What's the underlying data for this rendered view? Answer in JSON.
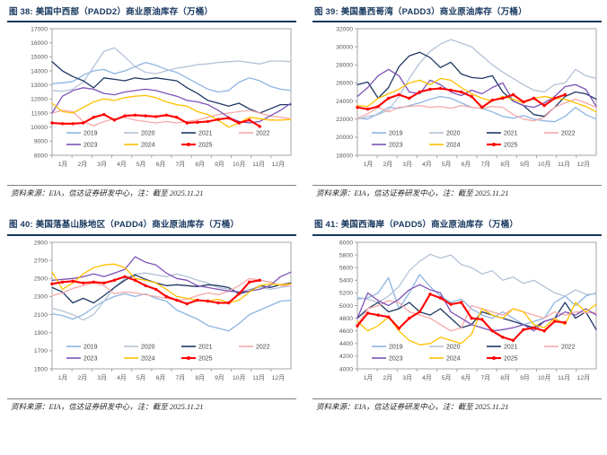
{
  "page_bg": "#ffffff",
  "figures": [
    {
      "title": "图 38:  美国中西部（PADD2）商业原油库存（万桶）",
      "source": "资料来源：EIA，信达证券研发中心，注：截至 2025.11.21"
    },
    {
      "title": "图 39:  美国墨西哥湾（PADD3）商业原油库存（万桶）",
      "source": "资料来源：EIA，信达证券研发中心，注：截至 2025.11.21"
    },
    {
      "title": "图 40:  美国落基山脉地区（PADD4）商业原油库存（万桶）",
      "source": "资料来源：EIA，信达证券研发中心，注：截至 2025.11.21"
    },
    {
      "title": "图 41:  美国西海岸（PADD5）商业原油库存（万桶）",
      "source": "资料来源：EIA，信达证券研发中心，注：截至 2025.11.21"
    }
  ],
  "style": {
    "title_color": "#17375E",
    "plot_border_color": "#a6a6a6",
    "tick_text_color": "#595959",
    "source_rule_color": "#7f7f7f"
  },
  "chart_data": [
    {
      "type": "line",
      "title": "美国中西部（PADD2）商业原油库存（万桶）",
      "xlabel": "",
      "ylabel": "",
      "ylim": [
        8000,
        17000
      ],
      "ytick": 1000,
      "grid": false,
      "legend_position": "inside-bottom",
      "x_labels": [
        "1月",
        "2月",
        "3月",
        "4月",
        "5月",
        "6月",
        "7月",
        "8月",
        "9月",
        "10月",
        "11月",
        "12月"
      ],
      "series": [
        {
          "name": "2019",
          "color": "#8EB4E3",
          "marker": false,
          "values": [
            13100,
            13150,
            13250,
            13700,
            14000,
            14100,
            13800,
            14000,
            14300,
            14600,
            14400,
            14100,
            13900,
            13500,
            13100,
            12700,
            12500,
            12600,
            13200,
            13500,
            13300,
            12900,
            12700,
            12600
          ]
        },
        {
          "name": "2020",
          "color": "#B3C2D6",
          "marker": false,
          "values": [
            12600,
            12550,
            12700,
            13200,
            14300,
            15400,
            15650,
            15000,
            14300,
            13900,
            13800,
            14000,
            14200,
            14300,
            14450,
            14500,
            14600,
            14650,
            14700,
            14600,
            14500,
            14700,
            14700,
            14650
          ]
        },
        {
          "name": "2021",
          "color": "#1F3864",
          "marker": false,
          "values": [
            14650,
            14000,
            13600,
            13300,
            12800,
            13500,
            13400,
            13300,
            13500,
            13400,
            13500,
            13400,
            13300,
            12800,
            12400,
            11900,
            11700,
            11500,
            11700,
            11300,
            11000,
            11300,
            11600,
            11600
          ]
        },
        {
          "name": "2022",
          "color": "#F5A9A9",
          "marker": false,
          "values": [
            11000,
            11200,
            11100,
            10400,
            10100,
            10400,
            10600,
            10700,
            10500,
            10400,
            10300,
            10400,
            10300,
            10400,
            10500,
            10700,
            10900,
            11000,
            11100,
            11200,
            11000,
            10800,
            10700,
            10600
          ]
        },
        {
          "name": "2023",
          "color": "#7E52B8",
          "marker": false,
          "values": [
            11000,
            12200,
            12600,
            12800,
            12700,
            12400,
            12300,
            12500,
            12600,
            12700,
            12600,
            12400,
            12200,
            11900,
            11800,
            11600,
            11200,
            10700,
            10400,
            10300,
            10400,
            10800,
            11200,
            11700
          ]
        },
        {
          "name": "2024",
          "color": "#FFC000",
          "marker": false,
          "values": [
            11700,
            11100,
            11000,
            11400,
            11800,
            12000,
            11900,
            12100,
            12200,
            12250,
            12100,
            11800,
            11600,
            11500,
            11100,
            10900,
            10500,
            10000,
            10300,
            10700,
            10600,
            10500,
            10500,
            10550
          ]
        },
        {
          "name": "2025",
          "color": "#FF0000",
          "marker": true,
          "values": [
            10300,
            10250,
            10250,
            10300,
            10700,
            10900,
            10500,
            10800,
            10850,
            10800,
            10750,
            10850,
            10700,
            10300,
            10350,
            10400,
            10550,
            10650,
            10300,
            10500,
            10050
          ]
        }
      ]
    },
    {
      "type": "line",
      "title": "美国墨西哥湾（PADD3）商业原油库存（万桶）",
      "xlabel": "",
      "ylabel": "",
      "ylim": [
        18000,
        32000
      ],
      "ytick": 2000,
      "grid": false,
      "legend_position": "inside-bottom",
      "x_labels": [
        "1月",
        "2月",
        "3月",
        "4月",
        "5月",
        "6月",
        "7月",
        "8月",
        "9月",
        "10月",
        "11月",
        "12月"
      ],
      "series": [
        {
          "name": "2019",
          "color": "#8EB4E3",
          "marker": false,
          "values": [
            22100,
            22000,
            22600,
            23300,
            23200,
            23500,
            23800,
            24200,
            24500,
            24300,
            23800,
            23300,
            23200,
            22800,
            22300,
            22100,
            22400,
            22000,
            21800,
            21700,
            22300,
            23300,
            22500,
            22000
          ]
        },
        {
          "name": "2020",
          "color": "#B3C2D6",
          "marker": false,
          "values": [
            22000,
            22300,
            22500,
            23000,
            24500,
            26500,
            28200,
            29500,
            30300,
            30800,
            30400,
            30000,
            29000,
            28000,
            27200,
            26500,
            25800,
            25200,
            25000,
            25800,
            26000,
            27500,
            26800,
            26500
          ]
        },
        {
          "name": "2021",
          "color": "#1F3864",
          "marker": false,
          "values": [
            25800,
            26100,
            24300,
            25500,
            27800,
            29000,
            29400,
            28800,
            27700,
            28300,
            27000,
            26600,
            26500,
            26800,
            25000,
            24000,
            23500,
            22500,
            22300,
            23300,
            24500,
            25000,
            24800,
            24200
          ]
        },
        {
          "name": "2022",
          "color": "#F5A9A9",
          "marker": false,
          "values": [
            22100,
            22600,
            23300,
            22800,
            23300,
            23400,
            23500,
            23300,
            23400,
            23200,
            23500,
            23300,
            23200,
            23400,
            23300,
            22500,
            22000,
            21800,
            22200,
            23300,
            23800,
            24200,
            23800,
            23300
          ]
        },
        {
          "name": "2023",
          "color": "#7E52B8",
          "marker": false,
          "values": [
            24500,
            25500,
            26800,
            27500,
            26800,
            25000,
            24800,
            26300,
            25800,
            25000,
            24600,
            25200,
            24800,
            25500,
            26000,
            24000,
            23500,
            23300,
            23800,
            24500,
            25600,
            25800,
            25300,
            23400
          ]
        },
        {
          "name": "2024",
          "color": "#FFC000",
          "marker": false,
          "values": [
            23500,
            23400,
            24300,
            24800,
            25300,
            26000,
            26300,
            25800,
            26500,
            26300,
            25500,
            24800,
            24300,
            24000,
            24500,
            24200,
            23800,
            24300,
            24500,
            24300,
            24200,
            23800,
            23400,
            22800
          ]
        },
        {
          "name": "2025",
          "color": "#FF0000",
          "marker": true,
          "values": [
            23300,
            23100,
            23400,
            24300,
            24700,
            24300,
            25000,
            25300,
            25400,
            25200,
            25000,
            24500,
            23300,
            24100,
            24300,
            24700,
            23900,
            24300,
            23500,
            24300,
            24700
          ]
        }
      ]
    },
    {
      "type": "line",
      "title": "美国落基山脉地区（PADD4）商业原油库存（万桶）",
      "xlabel": "",
      "ylabel": "",
      "ylim": [
        1500,
        2900
      ],
      "ytick": 200,
      "grid": false,
      "legend_position": "inside-bottom",
      "x_labels": [
        "1月",
        "2月",
        "3月",
        "4月",
        "5月",
        "6月",
        "7月",
        "8月",
        "9月",
        "10月",
        "11月",
        "12月"
      ],
      "series": [
        {
          "name": "2019",
          "color": "#8EB4E3",
          "marker": false,
          "values": [
            2110,
            2090,
            2050,
            2100,
            2180,
            2250,
            2300,
            2330,
            2300,
            2330,
            2280,
            2250,
            2150,
            2100,
            2050,
            1980,
            1950,
            1920,
            2000,
            2100,
            2150,
            2200,
            2250,
            2260
          ]
        },
        {
          "name": "2020",
          "color": "#B3C2D6",
          "marker": false,
          "values": [
            2170,
            2140,
            2100,
            2040,
            2100,
            2250,
            2400,
            2500,
            2550,
            2560,
            2540,
            2520,
            2550,
            2520,
            2480,
            2450,
            2400,
            2380,
            2350,
            2380,
            2400,
            2380,
            2400,
            2420
          ]
        },
        {
          "name": "2021",
          "color": "#1F3864",
          "marker": false,
          "values": [
            2400,
            2350,
            2230,
            2280,
            2230,
            2310,
            2400,
            2480,
            2540,
            2490,
            2450,
            2420,
            2430,
            2420,
            2410,
            2430,
            2420,
            2400,
            2330,
            2360,
            2420,
            2400,
            2430,
            2450
          ]
        },
        {
          "name": "2022",
          "color": "#F5A9A9",
          "marker": false,
          "values": [
            2310,
            2340,
            2390,
            2420,
            2450,
            2420,
            2330,
            2350,
            2340,
            2320,
            2300,
            2280,
            2260,
            2270,
            2310,
            2340,
            2320,
            2360,
            2420,
            2500,
            2480,
            2460,
            2420,
            2420
          ]
        },
        {
          "name": "2023",
          "color": "#7E52B8",
          "marker": false,
          "values": [
            2480,
            2490,
            2500,
            2520,
            2550,
            2520,
            2560,
            2600,
            2740,
            2680,
            2650,
            2560,
            2500,
            2480,
            2420,
            2400,
            2380,
            2360,
            2350,
            2360,
            2380,
            2420,
            2520,
            2570
          ]
        },
        {
          "name": "2024",
          "color": "#FFC000",
          "marker": false,
          "values": [
            2570,
            2380,
            2450,
            2550,
            2620,
            2650,
            2660,
            2620,
            2500,
            2480,
            2450,
            2380,
            2300,
            2280,
            2260,
            2250,
            2270,
            2230,
            2260,
            2350,
            2420,
            2440,
            2430,
            2440
          ]
        },
        {
          "name": "2025",
          "color": "#FF0000",
          "marker": true,
          "values": [
            2440,
            2460,
            2470,
            2450,
            2460,
            2450,
            2480,
            2520,
            2480,
            2420,
            2380,
            2300,
            2260,
            2220,
            2260,
            2250,
            2230,
            2230,
            2330,
            2460,
            2480
          ]
        }
      ]
    },
    {
      "type": "line",
      "title": "美国西海岸（PADD5）商业原油库存（万桶）",
      "xlabel": "",
      "ylabel": "",
      "ylim": [
        4000,
        6000
      ],
      "ytick": 200,
      "grid": false,
      "legend_position": "inside-bottom",
      "x_labels": [
        "1月",
        "2月",
        "3月",
        "4月",
        "5月",
        "6月",
        "7月",
        "8月",
        "9月",
        "10月",
        "11月",
        "12月"
      ],
      "series": [
        {
          "name": "2019",
          "color": "#8EB4E3",
          "marker": false,
          "values": [
            5100,
            5120,
            5200,
            5440,
            4950,
            5200,
            5490,
            5300,
            5150,
            5050,
            5100,
            4950,
            4850,
            4800,
            4900,
            4800,
            4700,
            4750,
            4800,
            5050,
            5150,
            5000,
            5150,
            5200
          ]
        },
        {
          "name": "2020",
          "color": "#B3C2D6",
          "marker": false,
          "values": [
            5130,
            5100,
            5050,
            5150,
            5300,
            5550,
            5700,
            5810,
            5750,
            5800,
            5650,
            5600,
            5500,
            5550,
            5400,
            5450,
            5350,
            5400,
            5300,
            5200,
            5150,
            5250,
            5180,
            5180
          ]
        },
        {
          "name": "2021",
          "color": "#1F3864",
          "marker": false,
          "values": [
            4800,
            4950,
            5050,
            4900,
            4950,
            5050,
            4900,
            4850,
            4950,
            4800,
            4650,
            4700,
            4900,
            4850,
            4800,
            4750,
            4700,
            4650,
            4750,
            4800,
            5050,
            4800,
            4900,
            4620
          ]
        },
        {
          "name": "2022",
          "color": "#F5A9A9",
          "marker": false,
          "values": [
            4700,
            4950,
            5000,
            5080,
            5050,
            4900,
            4850,
            4800,
            4700,
            4600,
            4650,
            5000,
            4950,
            4900,
            4850,
            4950,
            4900,
            4850,
            4800,
            4900,
            4850,
            4900,
            4890,
            4890
          ]
        },
        {
          "name": "2023",
          "color": "#7E52B8",
          "marker": false,
          "values": [
            4800,
            5200,
            5080,
            5000,
            5100,
            5250,
            5330,
            5250,
            5200,
            4900,
            4800,
            4700,
            4650,
            4600,
            4620,
            4650,
            4700,
            4600,
            4750,
            4800,
            4900,
            4850,
            4950,
            4850
          ]
        },
        {
          "name": "2024",
          "color": "#FFC000",
          "marker": false,
          "values": [
            4750,
            4600,
            4680,
            4820,
            4600,
            4450,
            4380,
            4400,
            4500,
            4450,
            4400,
            4550,
            4950,
            4850,
            4800,
            4950,
            4900,
            4700,
            4650,
            4800,
            4700,
            5050,
            4900,
            5020
          ]
        },
        {
          "name": "2025",
          "color": "#FF0000",
          "marker": true,
          "values": [
            4680,
            4880,
            4850,
            4820,
            4640,
            4800,
            4900,
            5180,
            5120,
            5020,
            5050,
            4800,
            4780,
            4600,
            4500,
            4450,
            4620,
            4650,
            4600,
            4750,
            4730
          ]
        }
      ]
    }
  ]
}
